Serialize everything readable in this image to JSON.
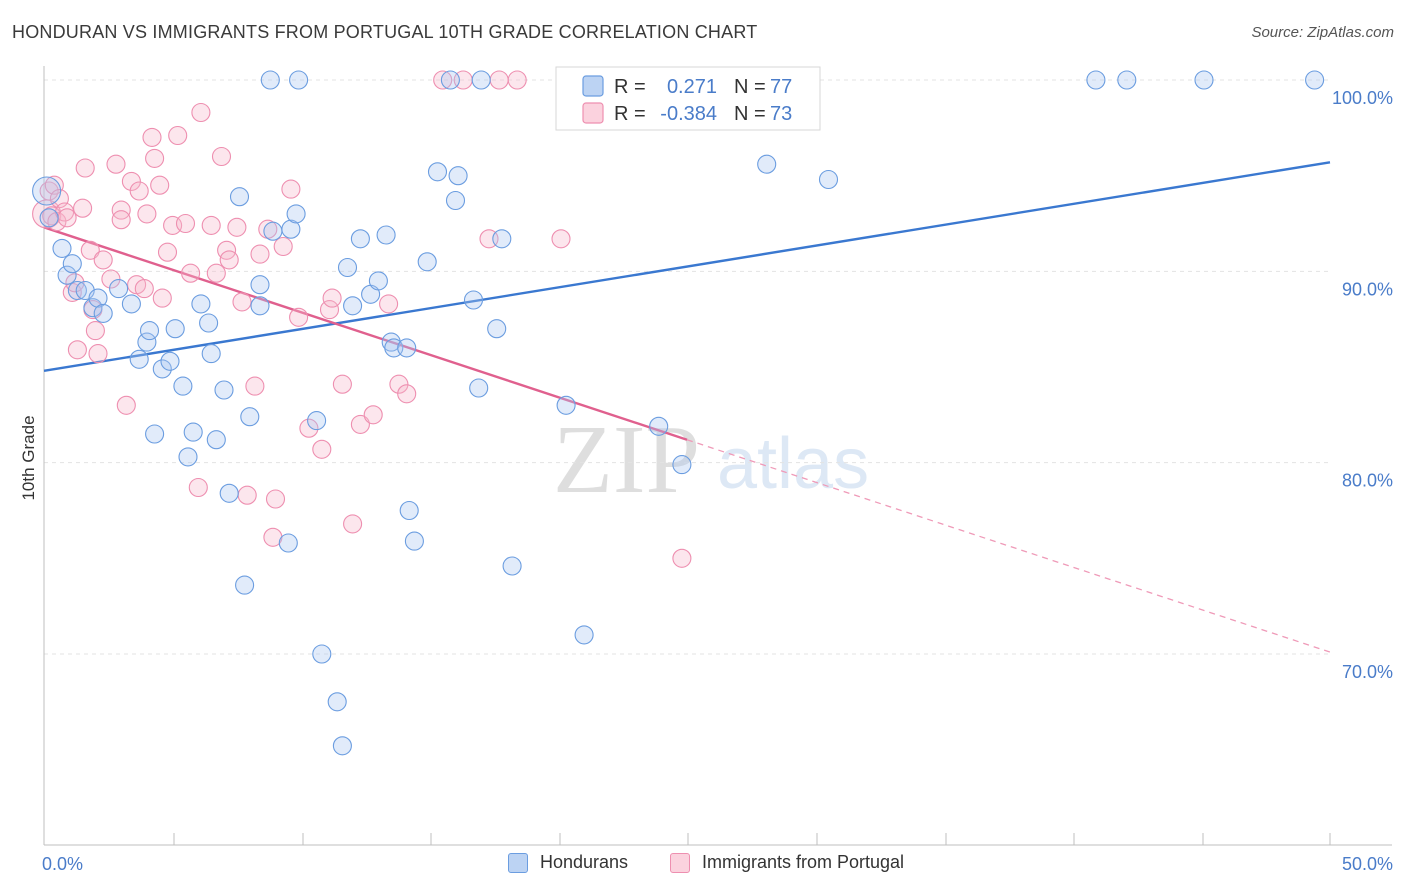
{
  "title": "HONDURAN VS IMMIGRANTS FROM PORTUGAL 10TH GRADE CORRELATION CHART",
  "source": "Source: ZipAtlas.com",
  "watermark": {
    "zip": "ZIP",
    "atlas": "atlas"
  },
  "legend": {
    "r_label": "R =",
    "n_label": "N =",
    "rows": [
      {
        "r": "0.271",
        "n": "77",
        "color": "#a9c6f0"
      },
      {
        "r": "-0.384",
        "n": "73",
        "color": "#f5b8cb"
      }
    ]
  },
  "bottom_legend": [
    {
      "label": "Hondurans",
      "color": "#a9c6f0"
    },
    {
      "label": "Immigrants from Portugal",
      "color": "#f5b8cb"
    }
  ],
  "chart_data": {
    "type": "scatter",
    "title": "HONDURAN VS IMMIGRANTS FROM PORTUGAL 10TH GRADE CORRELATION CHART",
    "xlabel": "",
    "ylabel": "10th Grade",
    "xlim": [
      0,
      50
    ],
    "ylim": [
      60,
      101.5
    ],
    "x_tick_labels": [
      "0.0%",
      "50.0%"
    ],
    "y_ticks": [
      70,
      80,
      90,
      100
    ],
    "y_tick_labels": [
      "70.0%",
      "80.0%",
      "90.0%",
      "100.0%"
    ],
    "grid": true,
    "series": [
      {
        "name": "Hondurans",
        "color": "#6b9de0",
        "trend": {
          "x": [
            0,
            50
          ],
          "y": [
            84.8,
            95.7
          ],
          "style": "solid"
        },
        "points": [
          [
            0.1,
            94.2
          ],
          [
            0.2,
            92.8
          ],
          [
            0.7,
            91.2
          ],
          [
            0.9,
            89.8
          ],
          [
            1.1,
            90.4
          ],
          [
            1.3,
            89.0
          ],
          [
            1.6,
            89.0
          ],
          [
            1.9,
            88.1
          ],
          [
            2.1,
            88.6
          ],
          [
            2.3,
            87.8
          ],
          [
            2.9,
            89.1
          ],
          [
            3.4,
            88.3
          ],
          [
            3.7,
            85.4
          ],
          [
            4.0,
            86.3
          ],
          [
            4.1,
            86.9
          ],
          [
            4.3,
            81.5
          ],
          [
            4.6,
            84.9
          ],
          [
            4.9,
            85.3
          ],
          [
            5.1,
            87.0
          ],
          [
            5.4,
            84.0
          ],
          [
            5.6,
            80.3
          ],
          [
            5.8,
            81.6
          ],
          [
            6.1,
            88.3
          ],
          [
            6.4,
            87.3
          ],
          [
            6.5,
            85.7
          ],
          [
            6.7,
            81.2
          ],
          [
            7.0,
            83.8
          ],
          [
            7.2,
            78.4
          ],
          [
            7.6,
            93.9
          ],
          [
            7.8,
            73.6
          ],
          [
            8.0,
            82.4
          ],
          [
            8.4,
            89.3
          ],
          [
            8.4,
            88.2
          ],
          [
            8.8,
            100.0
          ],
          [
            8.9,
            92.1
          ],
          [
            9.5,
            75.8
          ],
          [
            9.6,
            92.2
          ],
          [
            9.8,
            93.0
          ],
          [
            9.9,
            100.0
          ],
          [
            10.6,
            82.2
          ],
          [
            10.8,
            70.0
          ],
          [
            11.4,
            67.5
          ],
          [
            11.6,
            65.2
          ],
          [
            11.8,
            90.2
          ],
          [
            12.0,
            88.2
          ],
          [
            12.3,
            91.7
          ],
          [
            12.7,
            88.8
          ],
          [
            13.0,
            89.5
          ],
          [
            13.3,
            91.9
          ],
          [
            13.5,
            86.3
          ],
          [
            13.6,
            86.0
          ],
          [
            14.1,
            86.0
          ],
          [
            14.2,
            77.5
          ],
          [
            14.4,
            75.9
          ],
          [
            14.9,
            90.5
          ],
          [
            15.3,
            95.2
          ],
          [
            15.8,
            100.0
          ],
          [
            16.0,
            93.7
          ],
          [
            16.1,
            95.0
          ],
          [
            16.7,
            88.5
          ],
          [
            16.9,
            83.9
          ],
          [
            17.0,
            100.0
          ],
          [
            17.6,
            87.0
          ],
          [
            17.8,
            91.7
          ],
          [
            18.2,
            74.6
          ],
          [
            20.3,
            83.0
          ],
          [
            21.0,
            71.0
          ],
          [
            23.9,
            81.9
          ],
          [
            24.8,
            79.9
          ],
          [
            25.0,
            100.0
          ],
          [
            27.6,
            100.0
          ],
          [
            28.1,
            95.6
          ],
          [
            30.5,
            94.8
          ],
          [
            40.9,
            100.0
          ],
          [
            42.1,
            100.0
          ],
          [
            45.1,
            100.0
          ],
          [
            49.4,
            100.0
          ]
        ]
      },
      {
        "name": "Immigrants from Portugal",
        "color": "#ee8fb0",
        "trend": {
          "x": [
            0,
            25
          ],
          "y": [
            92.3,
            81.2
          ],
          "style": "solid",
          "dashed_extension": {
            "x": [
              25,
              50
            ],
            "y": [
              81.2,
              70.1
            ]
          }
        },
        "points": [
          [
            0.1,
            93.0
          ],
          [
            0.2,
            94.2
          ],
          [
            0.3,
            92.9
          ],
          [
            0.4,
            94.5
          ],
          [
            0.5,
            92.6
          ],
          [
            0.6,
            93.8
          ],
          [
            0.8,
            93.1
          ],
          [
            0.9,
            92.8
          ],
          [
            1.1,
            88.9
          ],
          [
            1.2,
            89.4
          ],
          [
            1.3,
            85.9
          ],
          [
            1.5,
            93.3
          ],
          [
            1.6,
            95.4
          ],
          [
            1.8,
            91.1
          ],
          [
            1.9,
            88.0
          ],
          [
            2.0,
            86.9
          ],
          [
            2.1,
            85.7
          ],
          [
            2.3,
            90.6
          ],
          [
            2.6,
            89.6
          ],
          [
            2.8,
            95.6
          ],
          [
            3.0,
            93.2
          ],
          [
            3.0,
            92.7
          ],
          [
            3.2,
            83.0
          ],
          [
            3.4,
            94.7
          ],
          [
            3.6,
            89.3
          ],
          [
            3.7,
            94.2
          ],
          [
            3.9,
            89.1
          ],
          [
            4.0,
            93.0
          ],
          [
            4.2,
            97.0
          ],
          [
            4.3,
            95.9
          ],
          [
            4.5,
            94.5
          ],
          [
            4.6,
            88.6
          ],
          [
            4.8,
            91.0
          ],
          [
            5.0,
            92.4
          ],
          [
            5.2,
            97.1
          ],
          [
            5.5,
            92.5
          ],
          [
            5.7,
            89.9
          ],
          [
            6.0,
            78.7
          ],
          [
            6.1,
            98.3
          ],
          [
            6.5,
            92.4
          ],
          [
            6.7,
            89.9
          ],
          [
            6.9,
            96.0
          ],
          [
            7.1,
            91.1
          ],
          [
            7.2,
            90.6
          ],
          [
            7.5,
            92.3
          ],
          [
            7.7,
            88.4
          ],
          [
            7.9,
            78.3
          ],
          [
            8.2,
            84.0
          ],
          [
            8.4,
            90.9
          ],
          [
            8.7,
            92.2
          ],
          [
            8.9,
            76.1
          ],
          [
            9.0,
            78.1
          ],
          [
            9.3,
            91.3
          ],
          [
            9.6,
            94.3
          ],
          [
            9.9,
            87.6
          ],
          [
            10.3,
            81.8
          ],
          [
            10.8,
            80.7
          ],
          [
            11.1,
            88.0
          ],
          [
            11.2,
            88.6
          ],
          [
            11.6,
            84.1
          ],
          [
            12.0,
            76.8
          ],
          [
            12.3,
            82.0
          ],
          [
            12.8,
            82.5
          ],
          [
            13.4,
            88.3
          ],
          [
            13.8,
            84.1
          ],
          [
            14.1,
            83.6
          ],
          [
            15.5,
            100.0
          ],
          [
            16.3,
            100.0
          ],
          [
            17.3,
            91.7
          ],
          [
            17.7,
            100.0
          ],
          [
            18.4,
            100.0
          ],
          [
            20.1,
            91.7
          ],
          [
            24.8,
            75.0
          ]
        ]
      }
    ]
  }
}
